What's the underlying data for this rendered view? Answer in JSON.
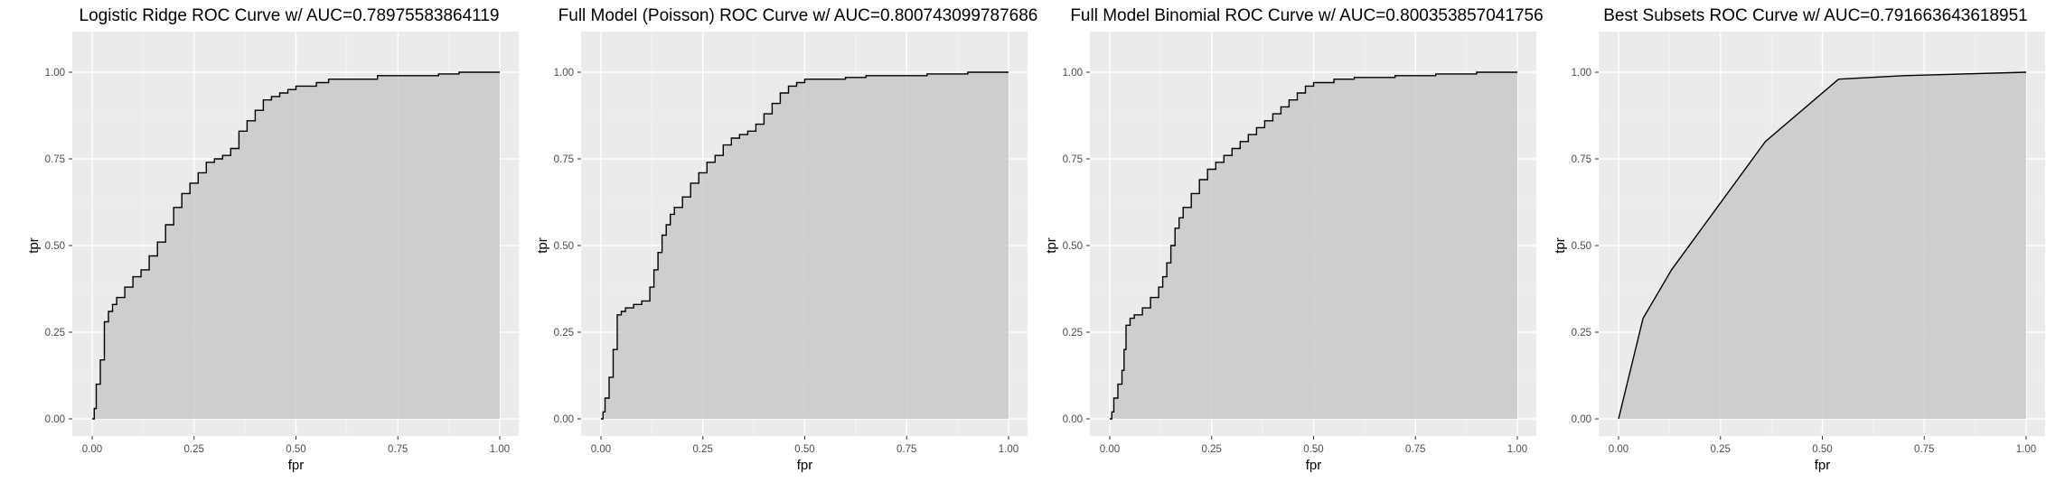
{
  "chart_data": [
    {
      "type": "area",
      "title": "Logistic Ridge ROC Curve w/ AUC=0.78975583864119",
      "xlabel": "fpr",
      "ylabel": "tpr",
      "xlim": [
        0,
        1
      ],
      "ylim": [
        0,
        1
      ],
      "x_ticks": [
        "0.00",
        "0.25",
        "0.50",
        "0.75",
        "1.00"
      ],
      "y_ticks": [
        "0.00",
        "0.25",
        "0.50",
        "0.75",
        "1.00"
      ],
      "grid": true,
      "step": true,
      "x": [
        0,
        0.005,
        0.01,
        0.02,
        0.03,
        0.04,
        0.05,
        0.06,
        0.08,
        0.1,
        0.12,
        0.14,
        0.16,
        0.18,
        0.2,
        0.22,
        0.24,
        0.26,
        0.28,
        0.3,
        0.32,
        0.34,
        0.36,
        0.38,
        0.4,
        0.42,
        0.44,
        0.46,
        0.48,
        0.5,
        0.52,
        0.55,
        0.58,
        0.62,
        0.66,
        0.7,
        0.8,
        0.85,
        0.9,
        1.0
      ],
      "y": [
        0,
        0.03,
        0.1,
        0.17,
        0.28,
        0.31,
        0.33,
        0.35,
        0.38,
        0.41,
        0.43,
        0.47,
        0.51,
        0.56,
        0.61,
        0.65,
        0.68,
        0.71,
        0.74,
        0.75,
        0.76,
        0.78,
        0.83,
        0.86,
        0.89,
        0.92,
        0.93,
        0.94,
        0.95,
        0.96,
        0.96,
        0.97,
        0.98,
        0.98,
        0.98,
        0.99,
        0.99,
        0.995,
        1.0,
        1.0
      ],
      "shaded_area": true
    },
    {
      "type": "area",
      "title": "Full Model (Poisson) ROC Curve w/ AUC=0.800743099787686",
      "xlabel": "fpr",
      "ylabel": "tpr",
      "xlim": [
        0,
        1
      ],
      "ylim": [
        0,
        1
      ],
      "x_ticks": [
        "0.00",
        "0.25",
        "0.50",
        "0.75",
        "1.00"
      ],
      "y_ticks": [
        "0.00",
        "0.25",
        "0.50",
        "0.75",
        "1.00"
      ],
      "grid": true,
      "step": true,
      "x": [
        0,
        0.005,
        0.01,
        0.02,
        0.03,
        0.04,
        0.05,
        0.06,
        0.08,
        0.1,
        0.12,
        0.13,
        0.14,
        0.15,
        0.16,
        0.17,
        0.18,
        0.2,
        0.22,
        0.24,
        0.26,
        0.28,
        0.3,
        0.32,
        0.34,
        0.36,
        0.38,
        0.4,
        0.42,
        0.44,
        0.46,
        0.48,
        0.5,
        0.55,
        0.6,
        0.65,
        0.7,
        0.8,
        0.9,
        1.0
      ],
      "y": [
        0,
        0.02,
        0.06,
        0.12,
        0.2,
        0.3,
        0.31,
        0.32,
        0.33,
        0.34,
        0.38,
        0.43,
        0.48,
        0.53,
        0.56,
        0.59,
        0.61,
        0.64,
        0.68,
        0.71,
        0.74,
        0.76,
        0.79,
        0.81,
        0.82,
        0.83,
        0.85,
        0.88,
        0.91,
        0.94,
        0.96,
        0.97,
        0.98,
        0.98,
        0.985,
        0.99,
        0.99,
        0.995,
        1.0,
        1.0
      ],
      "shaded_area": true
    },
    {
      "type": "area",
      "title": "Full Model Binomial ROC Curve w/ AUC=0.800353857041756",
      "xlabel": "fpr",
      "ylabel": "tpr",
      "xlim": [
        0,
        1
      ],
      "ylim": [
        0,
        1
      ],
      "x_ticks": [
        "0.00",
        "0.25",
        "0.50",
        "0.75",
        "1.00"
      ],
      "y_ticks": [
        "0.00",
        "0.25",
        "0.50",
        "0.75",
        "1.00"
      ],
      "grid": true,
      "step": true,
      "x": [
        0,
        0.005,
        0.01,
        0.02,
        0.03,
        0.035,
        0.04,
        0.05,
        0.06,
        0.08,
        0.1,
        0.12,
        0.13,
        0.14,
        0.15,
        0.16,
        0.17,
        0.18,
        0.2,
        0.22,
        0.24,
        0.26,
        0.28,
        0.3,
        0.32,
        0.34,
        0.36,
        0.38,
        0.4,
        0.42,
        0.44,
        0.46,
        0.48,
        0.5,
        0.55,
        0.6,
        0.7,
        0.8,
        0.9,
        1.0
      ],
      "y": [
        0,
        0.02,
        0.06,
        0.1,
        0.14,
        0.2,
        0.27,
        0.29,
        0.3,
        0.32,
        0.35,
        0.38,
        0.41,
        0.45,
        0.5,
        0.55,
        0.58,
        0.61,
        0.65,
        0.69,
        0.72,
        0.74,
        0.76,
        0.78,
        0.8,
        0.82,
        0.84,
        0.86,
        0.88,
        0.9,
        0.92,
        0.94,
        0.96,
        0.97,
        0.98,
        0.985,
        0.99,
        0.995,
        1.0,
        1.0
      ],
      "shaded_area": true
    },
    {
      "type": "area",
      "title": "Best Subsets ROC Curve w/ AUC=0.791663643618951",
      "xlabel": "fpr",
      "ylabel": "tpr",
      "xlim": [
        0,
        1
      ],
      "ylim": [
        0,
        1
      ],
      "x_ticks": [
        "0.00",
        "0.25",
        "0.50",
        "0.75",
        "1.00"
      ],
      "y_ticks": [
        "0.00",
        "0.25",
        "0.50",
        "0.75",
        "1.00"
      ],
      "grid": true,
      "step": false,
      "x": [
        0,
        0.06,
        0.13,
        0.36,
        0.54,
        0.7,
        1.0
      ],
      "y": [
        0,
        0.29,
        0.43,
        0.8,
        0.98,
        0.99,
        1.0
      ],
      "shaded_area": true
    }
  ]
}
